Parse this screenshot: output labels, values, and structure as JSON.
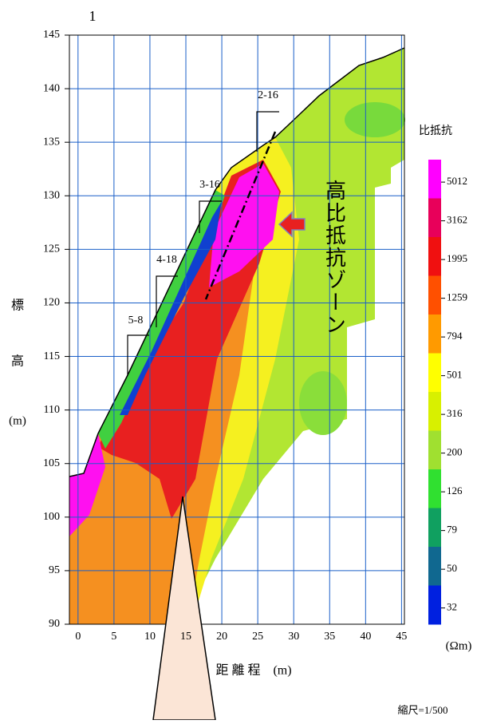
{
  "chart_data": {
    "type": "contour",
    "top_label": "1",
    "xlim": [
      -1.2,
      45.4
    ],
    "ylim": [
      90,
      145
    ],
    "xticks": [
      0,
      5,
      10,
      15,
      20,
      25,
      30,
      35,
      40,
      45
    ],
    "yticks": [
      90,
      95,
      100,
      105,
      110,
      115,
      120,
      125,
      130,
      135,
      140,
      145
    ],
    "grid": true,
    "grid_color": "#1a5fc8",
    "x_label": "距 離 程　(m)",
    "y_label": [
      "標",
      "高",
      "(m)"
    ],
    "boreholes": [
      "2-16",
      "3-16",
      "4-18",
      "5-8"
    ],
    "zone_label": "高比抵抗ゾーン",
    "scale": "縮尺=1/500",
    "colorbar": {
      "title": "比抵抗",
      "unit": "(Ωm)",
      "levels": [
        5012,
        3162,
        1995,
        1259,
        794,
        501,
        316,
        200,
        126,
        79,
        50,
        32
      ],
      "colors": [
        "#ff00ff",
        "#e8005a",
        "#f01010",
        "#ff5000",
        "#ff9a00",
        "#ffff00",
        "#d8f000",
        "#a0e030",
        "#30e030",
        "#10a060",
        "#106890",
        "#0020e0"
      ]
    }
  }
}
